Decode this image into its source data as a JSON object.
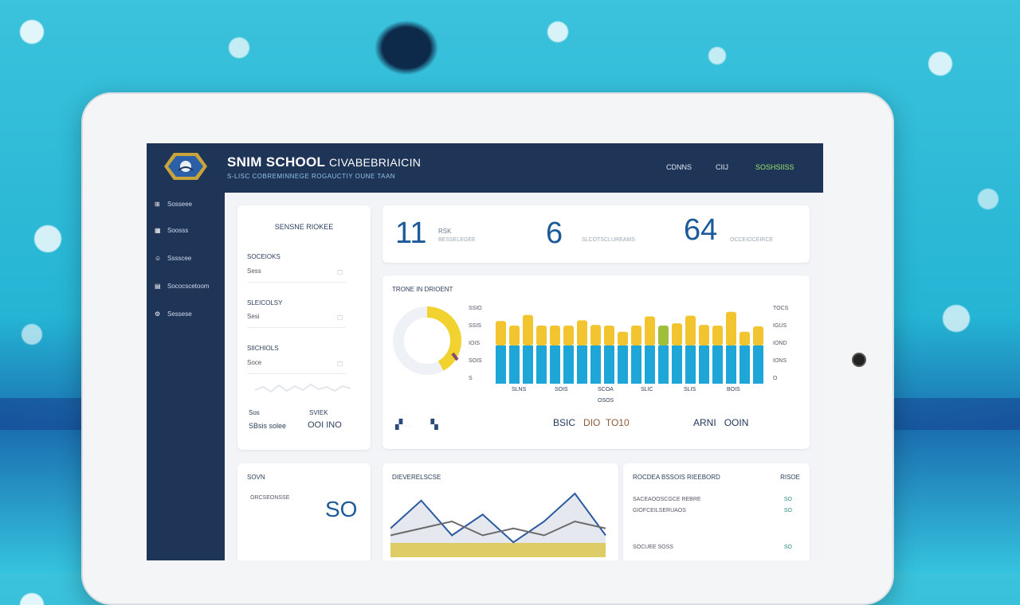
{
  "header": {
    "title": "SNIM SCHOOL",
    "title_suffix": "CIVABEBRIAICIN",
    "subtitle": "S-LISC COBREMINNEGE ROGAUCTIY OUNE TAAN",
    "nav": [
      "CDNNS",
      "CIIJ",
      "SOSHSIISS"
    ],
    "nav_accent": "#9be66a"
  },
  "sidebar": {
    "items": [
      {
        "icon": "grid-icon",
        "label": "Sosseee"
      },
      {
        "icon": "calendar-icon",
        "label": "Soosss"
      },
      {
        "icon": "users-icon",
        "label": "Sssscee"
      },
      {
        "icon": "chart-icon",
        "label": "Sococscetoom"
      },
      {
        "icon": "settings-icon",
        "label": "Sessese"
      }
    ]
  },
  "form_card": {
    "title": "SENSNE RIOKEE",
    "sections": [
      {
        "label": "SOCEIOKS",
        "value": "Sess"
      },
      {
        "label": "SLEICOLSY",
        "value": "Sesi"
      },
      {
        "label": "SIICHIOLS",
        "value": "Soce"
      }
    ],
    "footer_labels": [
      "Sos",
      "SVIEK"
    ],
    "footer_values": [
      "SBsis solee",
      "OOI INO"
    ]
  },
  "stats": [
    {
      "value": "11",
      "label": "RSK",
      "sub": "BESSELEGEE"
    },
    {
      "value": "6",
      "label": "",
      "sub": "SLCOTSCLUREAMS"
    },
    {
      "value": "64",
      "label": "",
      "sub": "OCCEIOCEIRCE"
    }
  ],
  "chart_card": {
    "title": "TRONE IN DRIOENT",
    "left_ticks": [
      "SSIO",
      "SSIS",
      "IOIS",
      "SOIS",
      "S"
    ],
    "right_ticks": [
      "TOCS",
      "IGUS",
      "IOND",
      "IONS",
      "O"
    ],
    "x_labels": [
      "SLNS",
      "SOIS",
      "SCOA",
      "SLIC",
      "SLIS",
      "BOIS"
    ],
    "x_sub": "OSOS",
    "footer_left": [
      "BSIC",
      "DIO",
      "TO10"
    ],
    "footer_right": [
      "ARNI",
      "OOIN"
    ]
  },
  "chart_data": {
    "type": "bar",
    "title": "TRONE IN DRIOENT",
    "series": [
      {
        "values": [
          5,
          5,
          5,
          5,
          5,
          5,
          5,
          5,
          5,
          5,
          5,
          5,
          5,
          5,
          5,
          5,
          5,
          5,
          5,
          5
        ]
      },
      {
        "values": [
          3.2,
          2.6,
          4.0,
          2.6,
          2.6,
          2.6,
          3.3,
          2.7,
          2.6,
          1.8,
          2.6,
          3.8,
          2.6,
          2.9,
          3.9,
          2.7,
          2.6,
          4.4,
          1.8,
          2.5
        ]
      }
    ],
    "ylim": [
      0,
      10
    ]
  },
  "gauge": {
    "percent": 42,
    "color": "#f2d22e"
  },
  "bottom_left_card": {
    "title": "SOVN",
    "label": "ORCSEONSSE",
    "value": "SO"
  },
  "bottom_mid_card": {
    "title": "DIEVERELSCSE",
    "line_data": {
      "type": "line",
      "x": [
        0,
        1,
        2,
        3,
        4,
        5,
        6,
        7
      ],
      "series": [
        {
          "values": [
            3,
            7,
            2,
            5,
            1,
            4,
            8,
            2
          ]
        },
        {
          "values": [
            2,
            3,
            4,
            2,
            3,
            2,
            4,
            3
          ]
        }
      ]
    }
  },
  "bottom_right_card": {
    "title": "ROCDEA BSSOIS RIEEBORD",
    "title_right": "RISOE",
    "rows": [
      {
        "label": "SACEAOOSCGCE REBRE",
        "value": "SO"
      },
      {
        "label": "GIOFCEILSERUAOS",
        "value": "SO"
      },
      {
        "label": "SOCUEE SOSS",
        "value": "SO"
      }
    ]
  }
}
